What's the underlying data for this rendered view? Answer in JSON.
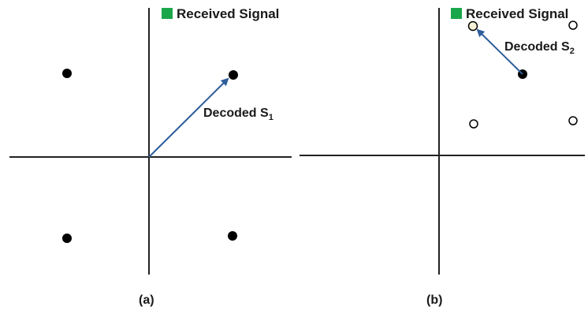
{
  "legend": {
    "text": "Received Signal",
    "color": "#1aa64a"
  },
  "panels": [
    {
      "caption": "(a)",
      "decoded_label": "Decoded S",
      "decoded_sub": "1"
    },
    {
      "caption": "(b)",
      "decoded_label": "Decoded S",
      "decoded_sub": "2"
    }
  ],
  "colors": {
    "axis": "#222222",
    "point": "#000000",
    "arrow": "#2e5d9a"
  }
}
